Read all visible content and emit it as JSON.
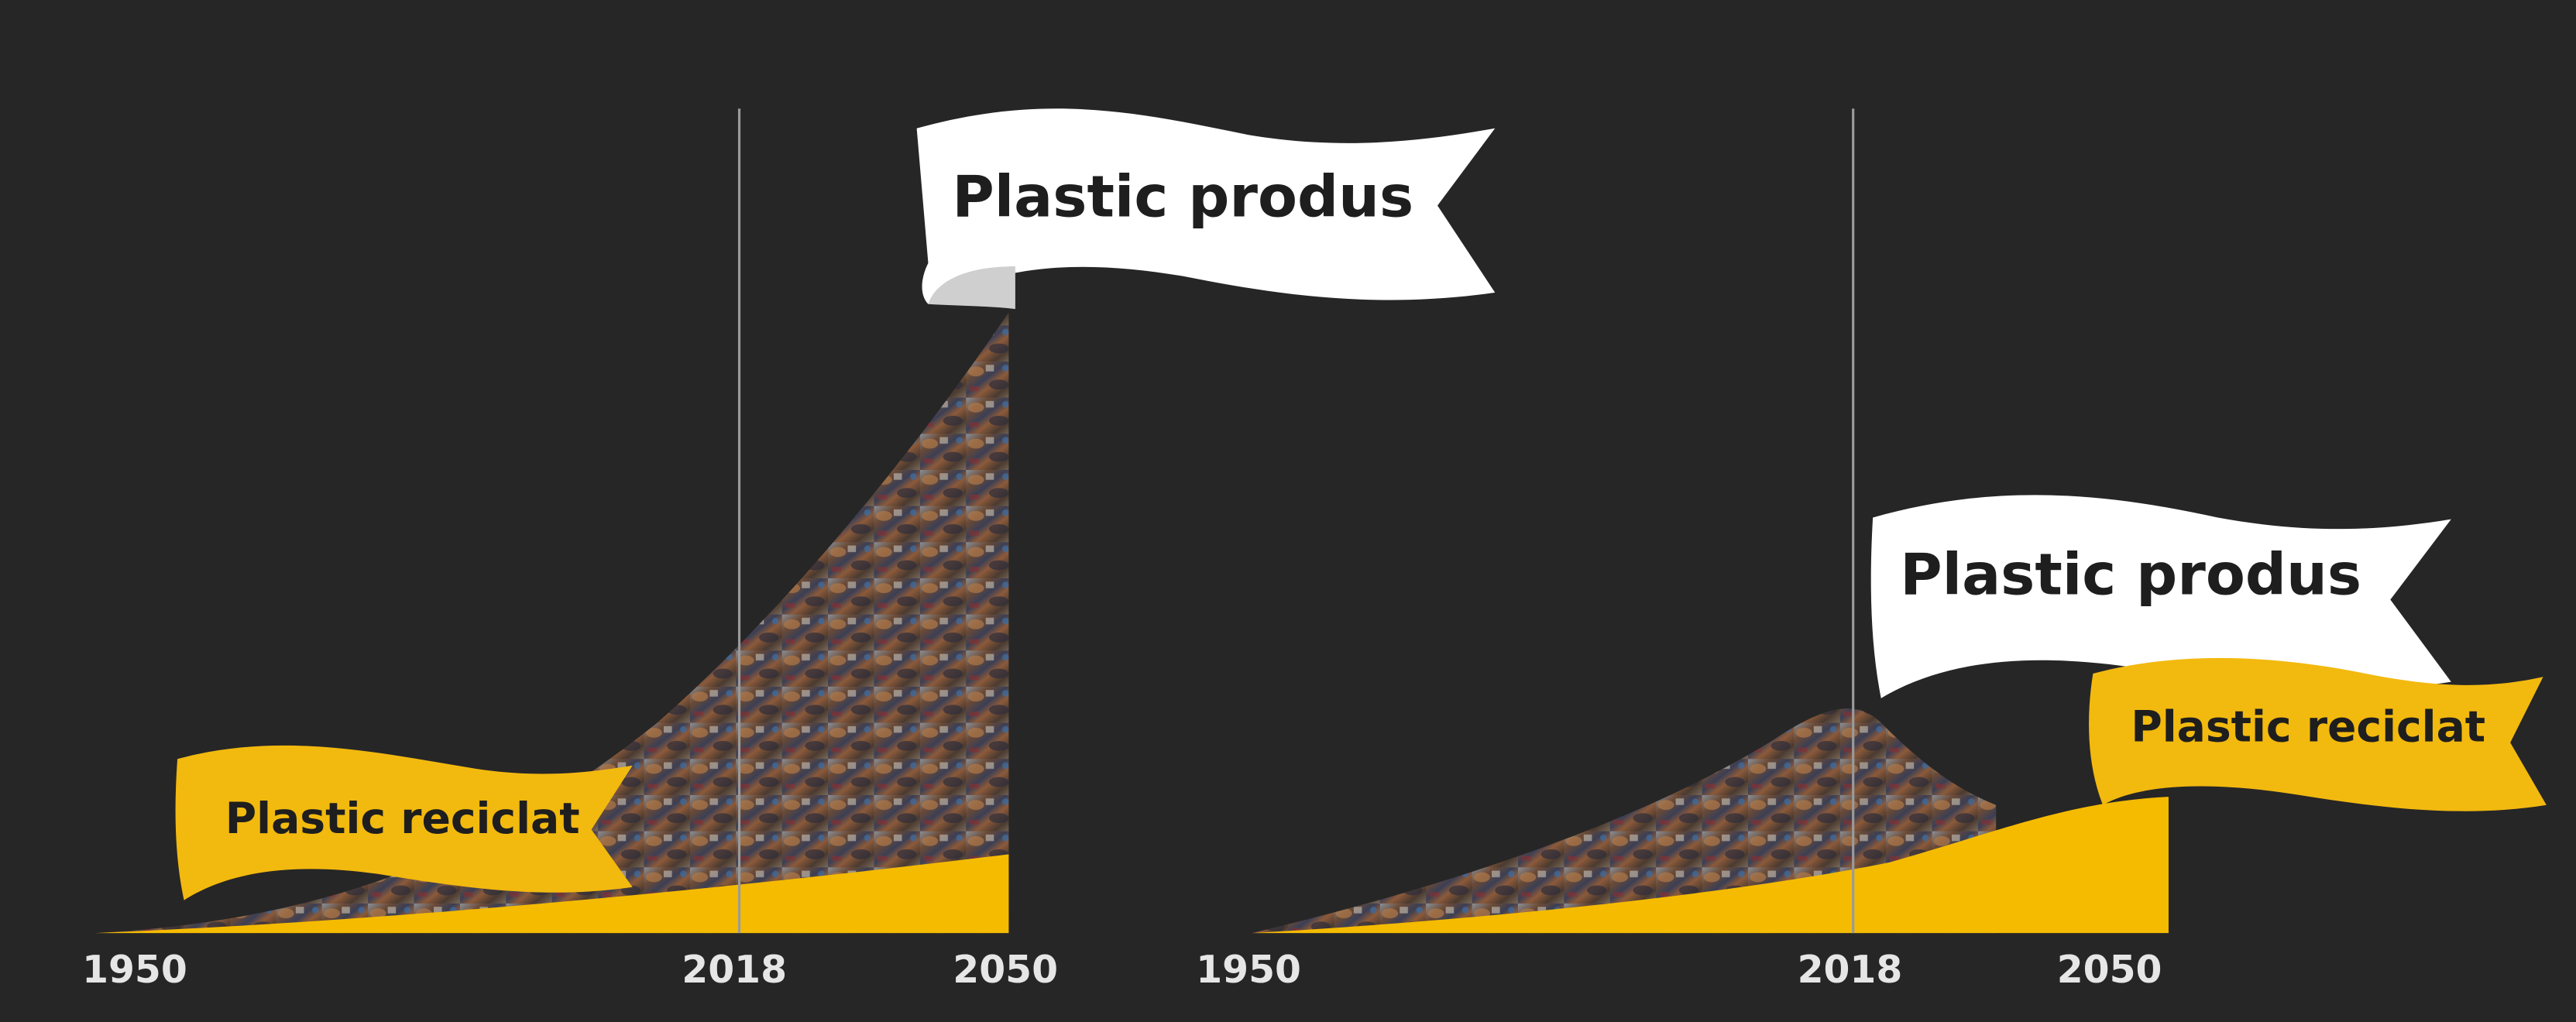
{
  "panels": [
    {
      "produced_flag": "Plastic produs",
      "recycled_flag": "Plastic reciclat",
      "axis_labels": [
        "1950",
        "2018",
        "2050"
      ]
    },
    {
      "produced_flag": "Plastic produs",
      "recycled_flag": "Plastic reciclat",
      "axis_labels": [
        "1950",
        "2018",
        "2050"
      ]
    }
  ]
}
